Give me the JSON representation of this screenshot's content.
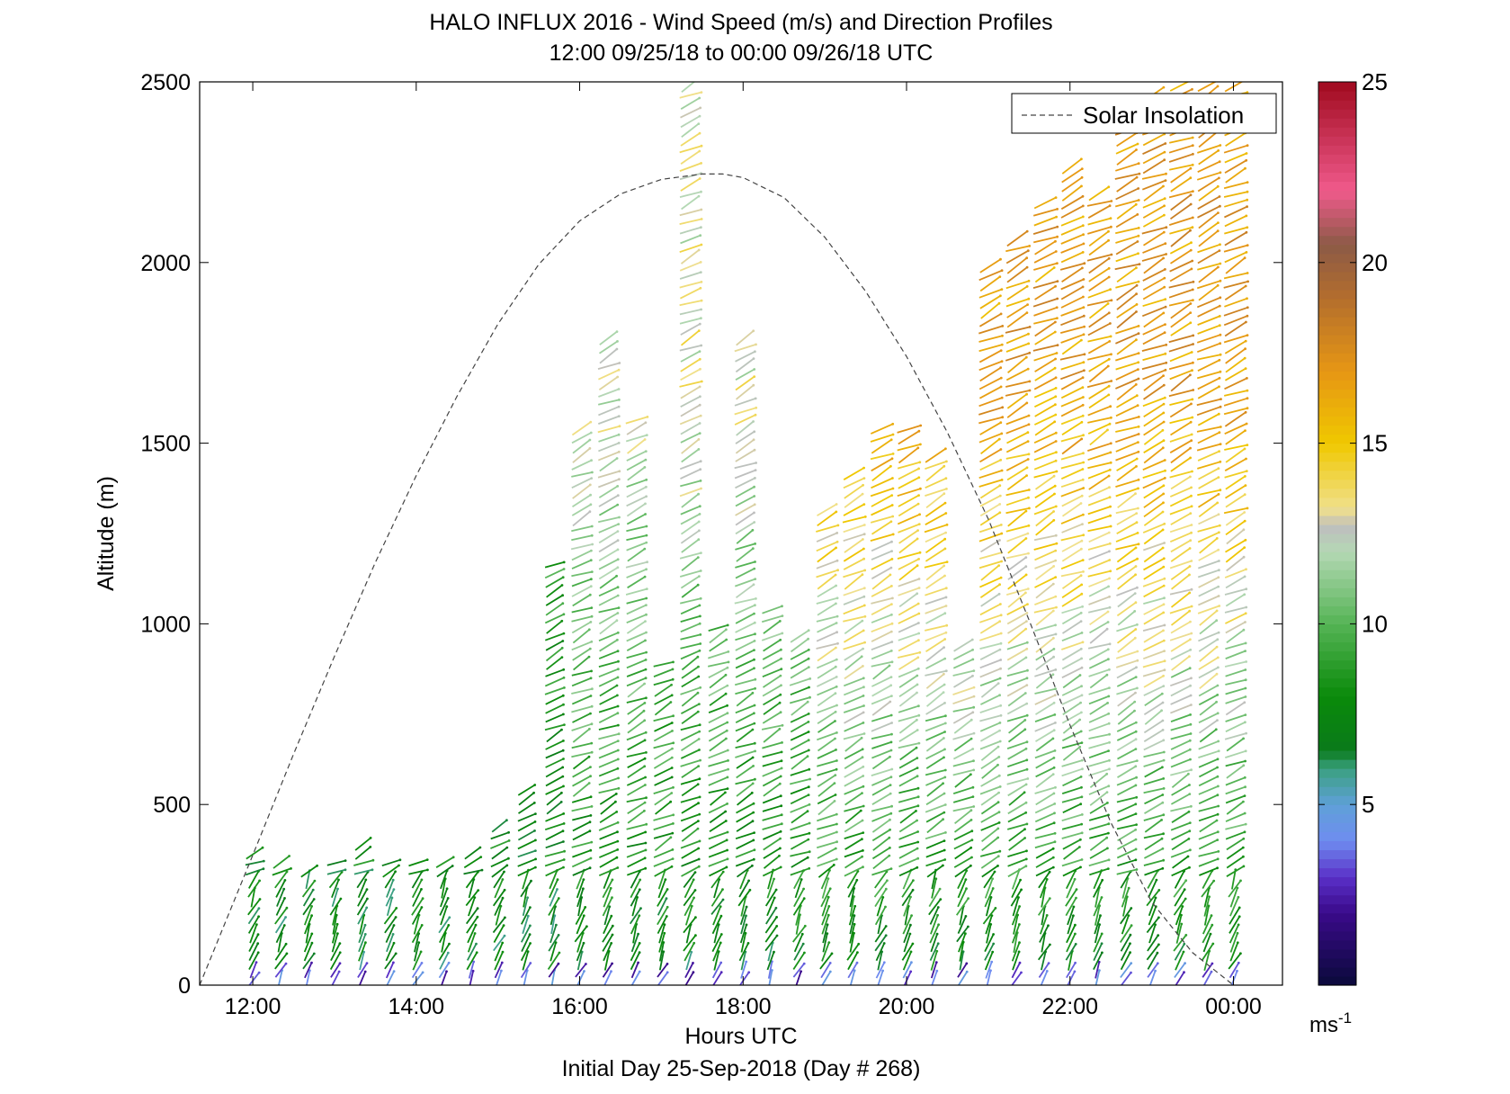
{
  "chart_data": {
    "type": "scatter",
    "title": "HALO INFLUX 2016 - Wind Speed (m/s) and Direction Profiles",
    "subtitle": "12:00 09/25/18 to 00:00 09/26/18  UTC",
    "xlabel": "Hours UTC",
    "ylabel": "Altitude (m)",
    "footer": "Initial Day 25-Sep-2018 (Day # 268)",
    "xlim": [
      11.35,
      24.6
    ],
    "ylim": [
      0,
      2500
    ],
    "x_ticks": [
      {
        "value": 12,
        "label": "12:00"
      },
      {
        "value": 14,
        "label": "14:00"
      },
      {
        "value": 16,
        "label": "16:00"
      },
      {
        "value": 18,
        "label": "18:00"
      },
      {
        "value": 20,
        "label": "20:00"
      },
      {
        "value": 22,
        "label": "22:00"
      },
      {
        "value": 24,
        "label": "00:00"
      }
    ],
    "y_ticks": [
      {
        "value": 0,
        "label": "0"
      },
      {
        "value": 500,
        "label": "500"
      },
      {
        "value": 1000,
        "label": "1000"
      },
      {
        "value": 1500,
        "label": "1500"
      },
      {
        "value": 2000,
        "label": "2000"
      },
      {
        "value": 2500,
        "label": "2500"
      }
    ],
    "legend": {
      "label": "Solar Insolation",
      "position": "top-right",
      "style": "dashed",
      "color": "#444444"
    },
    "solar_insolation": {
      "x": [
        11.35,
        12.0,
        12.5,
        13.0,
        13.5,
        14.0,
        14.5,
        15.0,
        15.5,
        16.0,
        16.5,
        17.0,
        17.5,
        17.75,
        18.0,
        18.5,
        19.0,
        19.5,
        20.0,
        20.5,
        21.0,
        21.5,
        22.0,
        22.5,
        23.0,
        23.5,
        24.0
      ],
      "y": [
        0,
        360,
        640,
        910,
        1170,
        1410,
        1630,
        1830,
        1995,
        2115,
        2190,
        2230,
        2245,
        2245,
        2235,
        2180,
        2070,
        1920,
        1740,
        1530,
        1290,
        1010,
        720,
        450,
        230,
        90,
        0
      ]
    },
    "colorbar": {
      "label": "ms-1",
      "min": 0,
      "max": 25,
      "ticks": [
        5,
        10,
        15,
        20,
        25
      ],
      "stops": [
        {
          "value": 0,
          "color": "#0a0a3a"
        },
        {
          "value": 2,
          "color": "#3a0a8a"
        },
        {
          "value": 3,
          "color": "#5a30c8"
        },
        {
          "value": 4,
          "color": "#6f8cf0"
        },
        {
          "value": 5,
          "color": "#5fa0d8"
        },
        {
          "value": 6,
          "color": "#3aa080"
        },
        {
          "value": 6.5,
          "color": "#0a7a1a"
        },
        {
          "value": 8,
          "color": "#0a8a0a"
        },
        {
          "value": 10,
          "color": "#55b455"
        },
        {
          "value": 12,
          "color": "#b4d8b4"
        },
        {
          "value": 12.7,
          "color": "#bebebe"
        },
        {
          "value": 13.2,
          "color": "#f0e08c"
        },
        {
          "value": 15,
          "color": "#f0c800"
        },
        {
          "value": 17,
          "color": "#e69614"
        },
        {
          "value": 19,
          "color": "#b46e2d"
        },
        {
          "value": 20.5,
          "color": "#8c5a46"
        },
        {
          "value": 22,
          "color": "#f05a8c"
        },
        {
          "value": 25,
          "color": "#a00a1e"
        }
      ]
    },
    "profiles": {
      "times": [
        12.0,
        12.33,
        12.67,
        13.0,
        13.33,
        13.67,
        14.0,
        14.33,
        14.67,
        15.0,
        15.33,
        15.67,
        16.0,
        16.33,
        16.67,
        17.0,
        17.33,
        17.67,
        18.0,
        18.33,
        18.67,
        19.0,
        19.33,
        19.67,
        20.0,
        20.33,
        20.67,
        21.0,
        21.33,
        21.67,
        22.0,
        22.33,
        22.67,
        23.0,
        23.33,
        23.67,
        24.0
      ],
      "top_altitude_m": [
        380,
        340,
        330,
        340,
        390,
        350,
        350,
        350,
        380,
        440,
        560,
        1180,
        1540,
        1790,
        1580,
        900,
        2500,
        1000,
        1790,
        1050,
        980,
        1320,
        1420,
        1540,
        1540,
        1470,
        950,
        2000,
        2080,
        2180,
        2280,
        2200,
        2400,
        2480,
        2500,
        2500,
        2500
      ],
      "altitude_step_m": 25,
      "speed_model": "speed_ms increases with altitude; upper levels 15-20 ms-1 after 19:00, 5-12 ms-1 near surface"
    }
  }
}
